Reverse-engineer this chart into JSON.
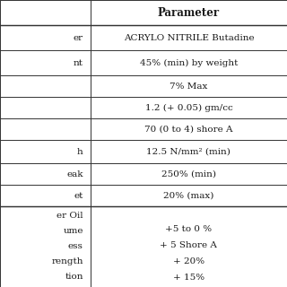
{
  "col_split": 0.315,
  "bg_color": "#ffffff",
  "line_color": "#333333",
  "text_color": "#1a1a1a",
  "superscript_color": "#4472C4",
  "header_fontsize": 8.5,
  "cell_fontsize": 7.5,
  "left_col_texts": [
    "er",
    "nt",
    "",
    "",
    "",
    "h",
    "eak",
    "et",
    "er Oil\nume\ness\nrength\ntion"
  ],
  "right_col_texts": [
    "ACRYLO NITRILE Butadine",
    "45% (min) by weight",
    "7% Max",
    "1.2 (+ 0.05) gm/cc",
    "70 (0 to 4) shore A",
    "12.5 N/mm² (min)",
    "250% (min)",
    "20% (max)",
    "+5 to 0 %\n+ 5 Shore A\n+ 20%\n+ 15%"
  ],
  "header_text": "Parameter",
  "row_heights_rel": [
    1.0,
    1.0,
    0.85,
    0.85,
    0.85,
    0.95,
    0.85,
    0.85,
    3.2
  ],
  "lw": 0.7
}
